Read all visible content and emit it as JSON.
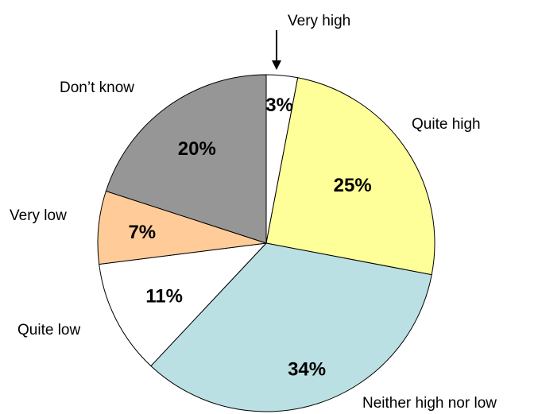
{
  "chart_data": {
    "type": "pie",
    "title": "",
    "start_angle_deg": 0,
    "direction": "clockwise",
    "slices": [
      {
        "label": "Very high",
        "value": 3,
        "display": "3%",
        "color": "#ffffff"
      },
      {
        "label": "Quite high",
        "value": 25,
        "display": "25%",
        "color": "#ffff99"
      },
      {
        "label": "Neither high nor low",
        "value": 34,
        "display": "34%",
        "color": "#bbe0e3"
      },
      {
        "label": "Quite low",
        "value": 11,
        "display": "11%",
        "color": "#ffffff"
      },
      {
        "label": "Very low",
        "value": 7,
        "display": "7%",
        "color": "#ffcc99"
      },
      {
        "label": "Don’t know",
        "value": 20,
        "display": "20%",
        "color": "#969696"
      }
    ],
    "legend": "none",
    "outline_color": "#000000"
  }
}
